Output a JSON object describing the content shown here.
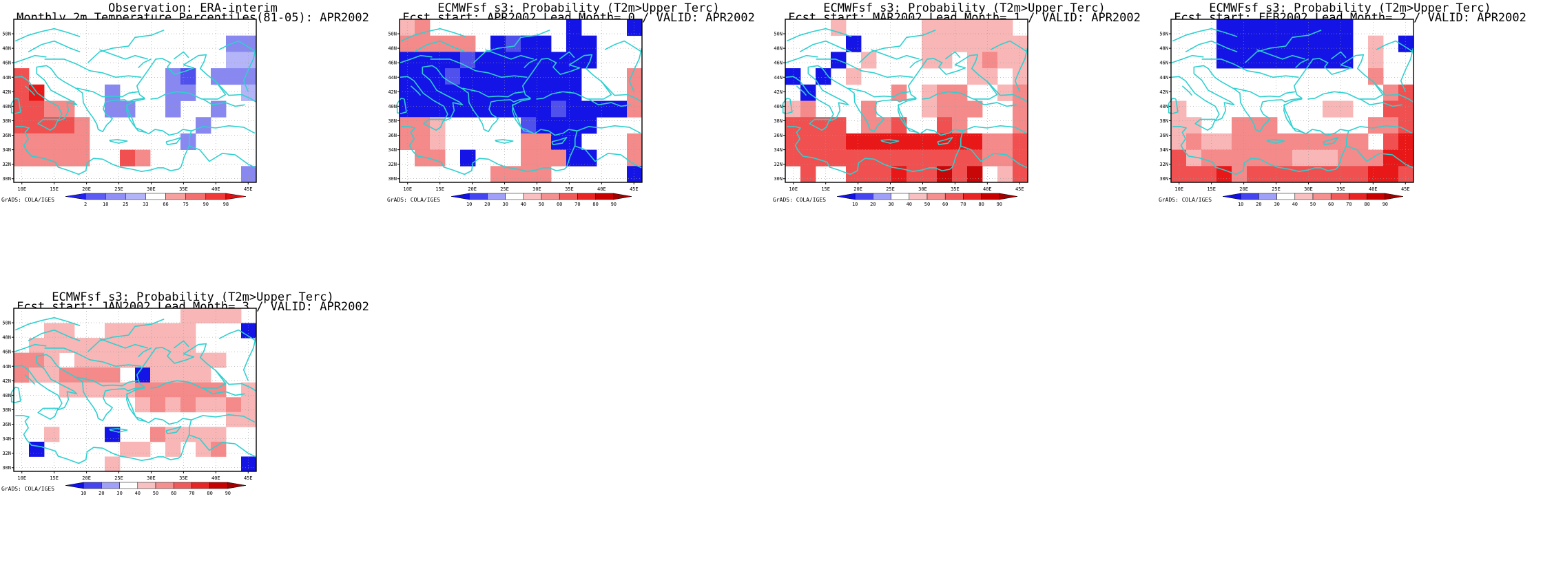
{
  "figure": {
    "panels": [
      {
        "id": "obs",
        "title_line1": "Observation: ERA-interim",
        "title_line2": "Monthly 2m Temperature Percentiles(81-05): APR2002",
        "colorbar_ticks": [
          "2",
          "10",
          "25",
          "33",
          "66",
          "75",
          "90",
          "98"
        ],
        "colorbar_colors": [
          "#2020f0",
          "#5c5cf4",
          "#8f8ff6",
          "#b3b3fa",
          "#ffffff",
          "#f6a0a0",
          "#f27070",
          "#f03a3a",
          "#e01010"
        ],
        "credit": "GrADS: COLA/IGES"
      },
      {
        "id": "lead0",
        "title_line1": "ECMWFsf s3: Probability (T2m>Upper Terc)",
        "title_line2": "Fcst start: APR2002  Lead Month= 0 / VALID: APR2002",
        "colorbar_ticks": [
          "10",
          "20",
          "30",
          "40",
          "50",
          "60",
          "70",
          "80",
          "90"
        ],
        "colorbar_colors": [
          "#1010e8",
          "#4444f0",
          "#a0a0f8",
          "#ffffff",
          "#f8c0c0",
          "#f49090",
          "#f05a5a",
          "#e82424",
          "#c80000",
          "#a00000"
        ],
        "credit": "GrADS: COLA/IGES"
      },
      {
        "id": "lead1",
        "title_line1": "ECMWFsf s3: Probability (T2m>Upper Terc)",
        "title_line2": "Fcst start: MAR2002  Lead Month= 1 / VALID: APR2002",
        "colorbar_ticks": [
          "10",
          "20",
          "30",
          "40",
          "50",
          "60",
          "70",
          "80",
          "90"
        ],
        "colorbar_colors": [
          "#1010e8",
          "#4444f0",
          "#a0a0f8",
          "#ffffff",
          "#f8c0c0",
          "#f49090",
          "#f05a5a",
          "#e82424",
          "#c80000",
          "#a00000"
        ],
        "credit": "GrADS: COLA/IGES"
      },
      {
        "id": "lead2",
        "title_line1": "ECMWFsf s3: Probability (T2m>Upper Terc)",
        "title_line2": "Fcst start: FEB2002  Lead Month= 2 / VALID: APR2002",
        "colorbar_ticks": [
          "10",
          "20",
          "30",
          "40",
          "50",
          "60",
          "70",
          "80",
          "90"
        ],
        "colorbar_colors": [
          "#1010e8",
          "#4444f0",
          "#a0a0f8",
          "#ffffff",
          "#f8c0c0",
          "#f49090",
          "#f05a5a",
          "#e82424",
          "#c80000",
          "#a00000"
        ],
        "credit": "GrADS: COLA/IGES"
      },
      {
        "id": "lead3",
        "title_line1": "ECMWFsf s3: Probability (T2m>Upper Terc)",
        "title_line2": "Fcst start: JAN2002  Lead Month= 3 / VALID: APR2002",
        "colorbar_ticks": [
          "10",
          "20",
          "30",
          "40",
          "50",
          "60",
          "70",
          "80",
          "90"
        ],
        "colorbar_colors": [
          "#1010e8",
          "#4444f0",
          "#a0a0f8",
          "#ffffff",
          "#f8c0c0",
          "#f49090",
          "#f05a5a",
          "#e82424",
          "#c80000",
          "#a00000"
        ],
        "credit": "GrADS: COLA/IGES"
      }
    ],
    "lon_labels": [
      "10E",
      "15E",
      "20E",
      "25E",
      "30E",
      "35E",
      "40E",
      "45E"
    ],
    "lat_labels": [
      "30N",
      "32N",
      "34N",
      "36N",
      "38N",
      "40N",
      "42N",
      "44N",
      "46N",
      "48N",
      "50N"
    ],
    "coastline_color": "#2ed0d0"
  }
}
